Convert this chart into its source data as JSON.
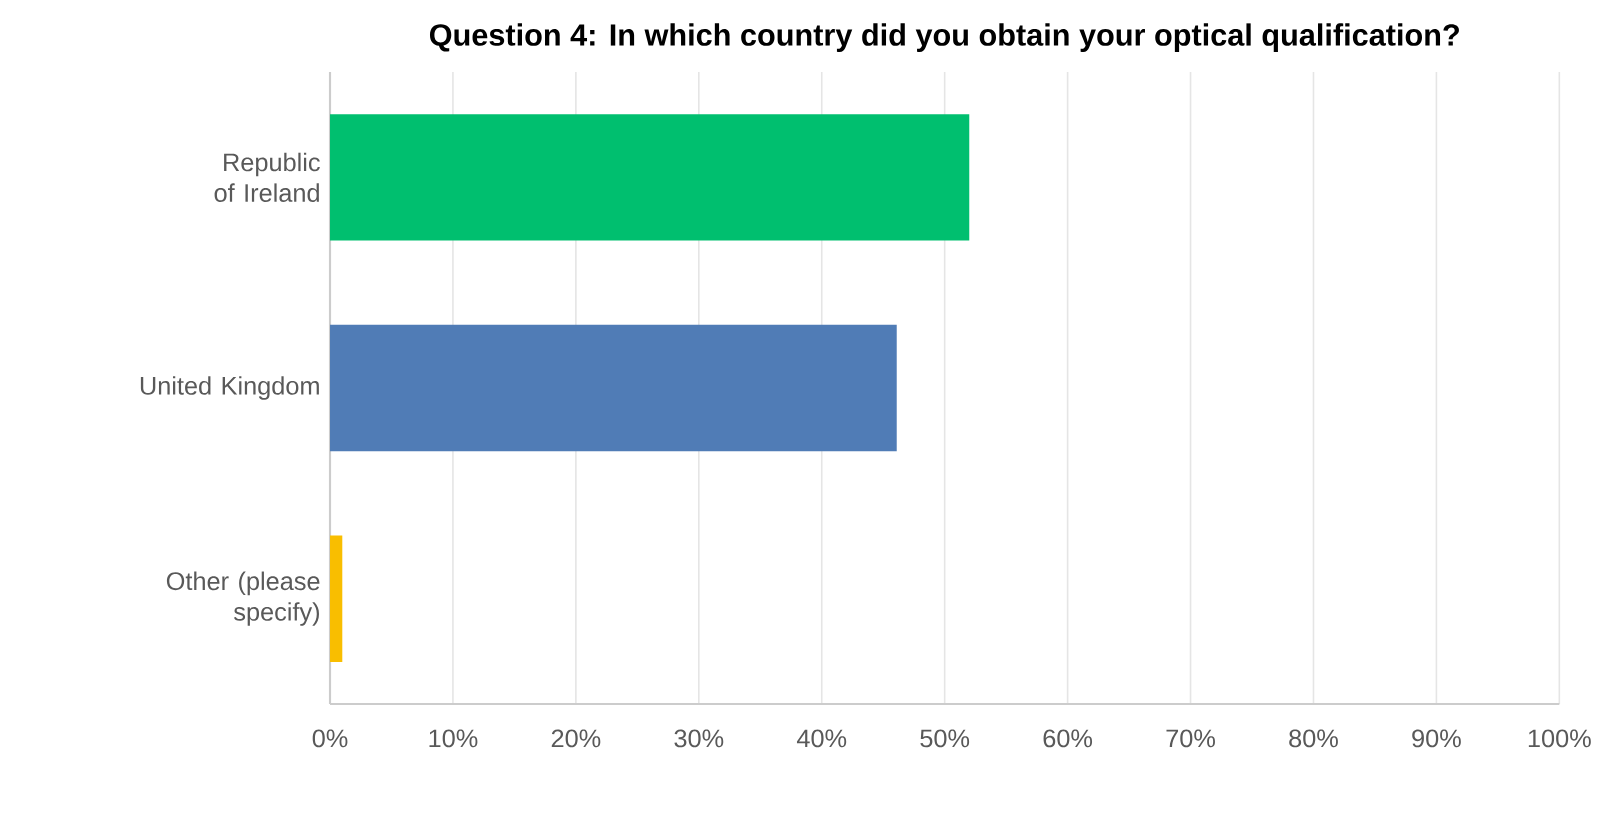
{
  "chart_data": {
    "type": "bar",
    "orientation": "horizontal",
    "title": "Question 4: In which country did you obtain your optical qualification?",
    "categories": [
      "Republic of Ireland",
      "United Kingdom",
      "Other (please specify)"
    ],
    "values": [
      52,
      46.1,
      1
    ],
    "colors": [
      "#00bf6f",
      "#507cb6",
      "#f9be00"
    ],
    "xlim": [
      0,
      100
    ],
    "xticks": [
      {
        "value": 0,
        "label": "0%"
      },
      {
        "value": 10,
        "label": "10%"
      },
      {
        "value": 20,
        "label": "20%"
      },
      {
        "value": 30,
        "label": "30%"
      },
      {
        "value": 40,
        "label": "40%"
      },
      {
        "value": 50,
        "label": "50%"
      },
      {
        "value": 60,
        "label": "60%"
      },
      {
        "value": 70,
        "label": "70%"
      },
      {
        "value": 80,
        "label": "80%"
      },
      {
        "value": 90,
        "label": "90%"
      },
      {
        "value": 100,
        "label": "100%"
      }
    ],
    "grid": "x"
  }
}
